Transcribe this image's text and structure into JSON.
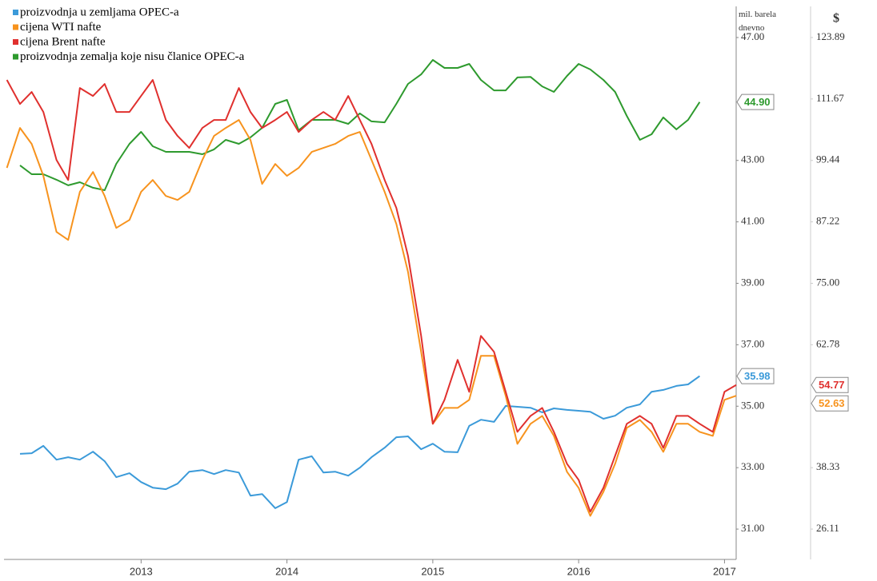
{
  "chart_data": {
    "type": "line",
    "y_label": "mil. barela dnevno",
    "y2_label": "$",
    "x": [
      2012.08,
      2012.17,
      2012.25,
      2012.33,
      2012.42,
      2012.5,
      2012.58,
      2012.67,
      2012.75,
      2012.83,
      2012.92,
      2013,
      2013.08,
      2013.17,
      2013.25,
      2013.33,
      2013.42,
      2013.5,
      2013.58,
      2013.67,
      2013.75,
      2013.83,
      2013.92,
      2014,
      2014.08,
      2014.17,
      2014.25,
      2014.33,
      2014.42,
      2014.5,
      2014.58,
      2014.67,
      2014.75,
      2014.83,
      2014.92,
      2015,
      2015.08,
      2015.17,
      2015.25,
      2015.33,
      2015.42,
      2015.5,
      2015.58,
      2015.67,
      2015.75,
      2015.83,
      2015.92,
      2016,
      2016.08,
      2016.17,
      2016.25,
      2016.33,
      2016.42,
      2016.5,
      2016.58,
      2016.67,
      2016.75,
      2016.83,
      2016.92,
      2017,
      2017.08
    ],
    "xlim": [
      2012.06,
      2017.08
    ],
    "xticks": [
      2013,
      2014,
      2015,
      2016,
      2017
    ],
    "ylim": [
      30,
      48
    ],
    "yticks": [
      {
        "value": 31,
        "label": "31.00"
      },
      {
        "value": 33,
        "label": "33.00"
      },
      {
        "value": 35,
        "label": "35.00"
      },
      {
        "value": 37,
        "label": "37.00"
      },
      {
        "value": 39,
        "label": "39.00"
      },
      {
        "value": 41,
        "label": "41.00"
      },
      {
        "value": 43,
        "label": "43.00"
      },
      {
        "value": 47,
        "label": "47.00"
      }
    ],
    "y2lim": [
      20,
      130
    ],
    "y2ticks": [
      26.11,
      38.33,
      62.78,
      {
        "value": 75,
        "label": "75.00"
      },
      87.22,
      99.44,
      111.67,
      123.89
    ],
    "series": [
      {
        "name": "proizvodnja u zemljama OPEC-a",
        "color": "#3b9ad9",
        "end_label": "35.98",
        "values": [
          null,
          33.45,
          33.47,
          33.71,
          33.26,
          33.34,
          33.26,
          33.52,
          33.21,
          32.69,
          32.82,
          32.53,
          32.35,
          32.3,
          32.48,
          32.87,
          32.92,
          32.79,
          32.92,
          32.84,
          32.09,
          32.14,
          31.68,
          31.88,
          33.26,
          33.37,
          32.84,
          32.87,
          32.74,
          33.0,
          33.34,
          33.65,
          33.99,
          34.02,
          33.6,
          33.78,
          33.52,
          33.5,
          34.36,
          34.56,
          34.49,
          35.01,
          34.98,
          34.95,
          34.8,
          34.93,
          34.88,
          34.85,
          34.82,
          34.59,
          34.69,
          34.95,
          35.06,
          35.47,
          35.53,
          35.66,
          35.71,
          35.98,
          null,
          null,
          null
        ]
      },
      {
        "name": "cijena WTI nafte",
        "color": "#f7931e",
        "axis": "y2",
        "end_label": "52.63",
        "values": [
          97.95,
          105.9,
          102.72,
          96.36,
          85.22,
          83.63,
          93.18,
          97.15,
          92.38,
          86.02,
          87.61,
          93.18,
          95.56,
          92.38,
          91.58,
          93.18,
          99.54,
          104.31,
          105.9,
          107.49,
          103.51,
          94.77,
          98.74,
          96.36,
          97.95,
          101.13,
          101.92,
          102.72,
          104.31,
          105.11,
          99.54,
          93.18,
          86.81,
          77.27,
          61.36,
          47.05,
          50.22,
          50.22,
          51.82,
          60.57,
          60.57,
          52.61,
          43.07,
          47.05,
          48.63,
          44.66,
          37.5,
          34.32,
          28.75,
          33.52,
          39.09,
          46.25,
          47.84,
          45.45,
          41.47,
          47.05,
          47.05,
          45.45,
          44.66,
          51.82,
          52.63
        ]
      },
      {
        "name": "cijena Brent nafte",
        "color": "#e0302e",
        "axis": "y2",
        "end_label": "54.77",
        "values": [
          115.45,
          110.67,
          113.06,
          109.08,
          99.54,
          95.56,
          113.85,
          112.26,
          114.65,
          109.08,
          109.08,
          112.26,
          115.45,
          107.49,
          104.31,
          101.92,
          105.9,
          107.49,
          107.49,
          113.85,
          109.08,
          105.9,
          107.49,
          109.08,
          105.11,
          107.49,
          109.08,
          107.49,
          112.26,
          107.49,
          102.72,
          95.56,
          90.0,
          80.45,
          64.54,
          47.05,
          51.82,
          59.77,
          53.41,
          64.54,
          61.36,
          53.41,
          45.45,
          48.63,
          50.22,
          45.45,
          39.09,
          35.91,
          29.55,
          34.32,
          40.68,
          47.05,
          48.63,
          47.05,
          42.27,
          48.63,
          48.63,
          47.05,
          45.45,
          53.41,
          54.77
        ]
      },
      {
        "name": "proizvodnja zemalja koje nisu članice OPEC-a",
        "color": "#2e9a2e",
        "end_label": "44.90",
        "values": [
          null,
          42.84,
          42.55,
          42.55,
          42.37,
          42.19,
          42.29,
          42.11,
          42.03,
          42.89,
          43.54,
          43.93,
          43.46,
          43.28,
          43.28,
          43.28,
          43.2,
          43.36,
          43.67,
          43.54,
          43.75,
          44.06,
          44.84,
          44.97,
          43.98,
          44.32,
          44.32,
          44.32,
          44.19,
          44.53,
          44.27,
          44.24,
          44.84,
          45.49,
          45.8,
          46.27,
          46.01,
          46.01,
          46.14,
          45.62,
          45.28,
          45.28,
          45.7,
          45.72,
          45.41,
          45.23,
          45.75,
          46.14,
          45.96,
          45.62,
          45.23,
          44.45,
          43.67,
          43.85,
          44.4,
          44.01,
          44.32,
          44.9,
          null,
          null,
          null
        ]
      }
    ]
  }
}
